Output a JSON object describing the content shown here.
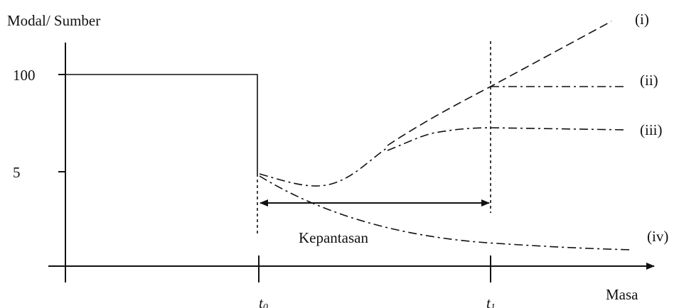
{
  "y_axis_label": "Modal/ Sumber",
  "x_axis_label": "Masa",
  "y_ticks": [
    "100",
    "5"
  ],
  "x_ticks": [
    {
      "base": "t",
      "sub": "0"
    },
    {
      "base": "t",
      "sub": "1"
    }
  ],
  "annotation": "Kepantasan",
  "curve_labels": [
    "(i)",
    "(ii)",
    "(iii)",
    "(iv)"
  ]
}
